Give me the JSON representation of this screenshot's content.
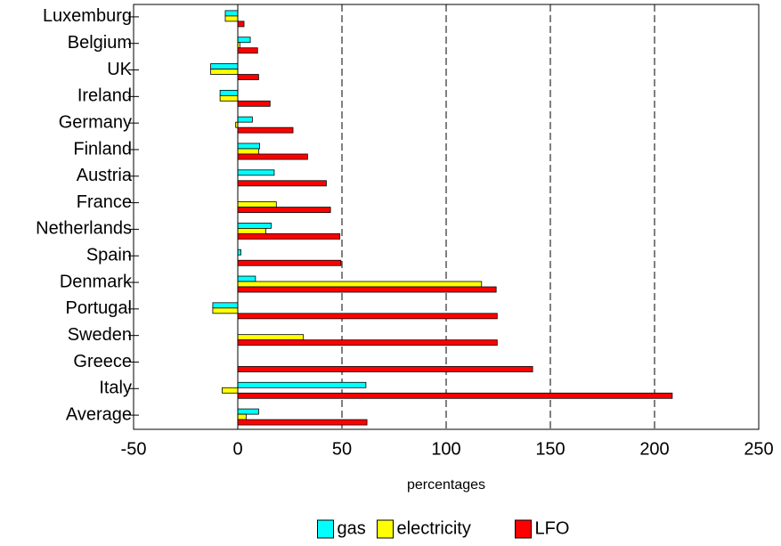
{
  "chart_data": {
    "type": "hbar",
    "x_label": "percentages",
    "categories": [
      "Luxemburg",
      "Belgium",
      "UK",
      "Ireland",
      "Germany",
      "Finland",
      "Austria",
      "France",
      "Netherlands",
      "Spain",
      "Denmark",
      "Portugal",
      "Sweden",
      "Greece",
      "Italy",
      "Average"
    ],
    "series": [
      {
        "name": "gas",
        "color": "#00ffff",
        "values": [
          -6,
          6,
          -13,
          -8.5,
          7,
          10.5,
          17.5,
          0,
          16,
          1.5,
          8.5,
          -12,
          0,
          0,
          61.5,
          10
        ]
      },
      {
        "name": "electricity",
        "color": "#ffff00",
        "values": [
          -6,
          1,
          -13,
          -8.5,
          -1,
          10,
          0,
          18.5,
          13.5,
          0,
          117,
          -12,
          31.5,
          0,
          -7.5,
          4
        ]
      },
      {
        "name": "LFO",
        "color": "#ff0000",
        "values": [
          3,
          9.5,
          10,
          15.5,
          26.5,
          33.5,
          42.5,
          44.5,
          49,
          49.5,
          124,
          124.5,
          124.5,
          141.5,
          208.5,
          62
        ]
      }
    ],
    "xlim": [
      -50,
      250
    ],
    "xticks": [
      -50,
      0,
      50,
      100,
      150,
      200,
      250
    ],
    "grid": true,
    "legend": "bottom"
  }
}
